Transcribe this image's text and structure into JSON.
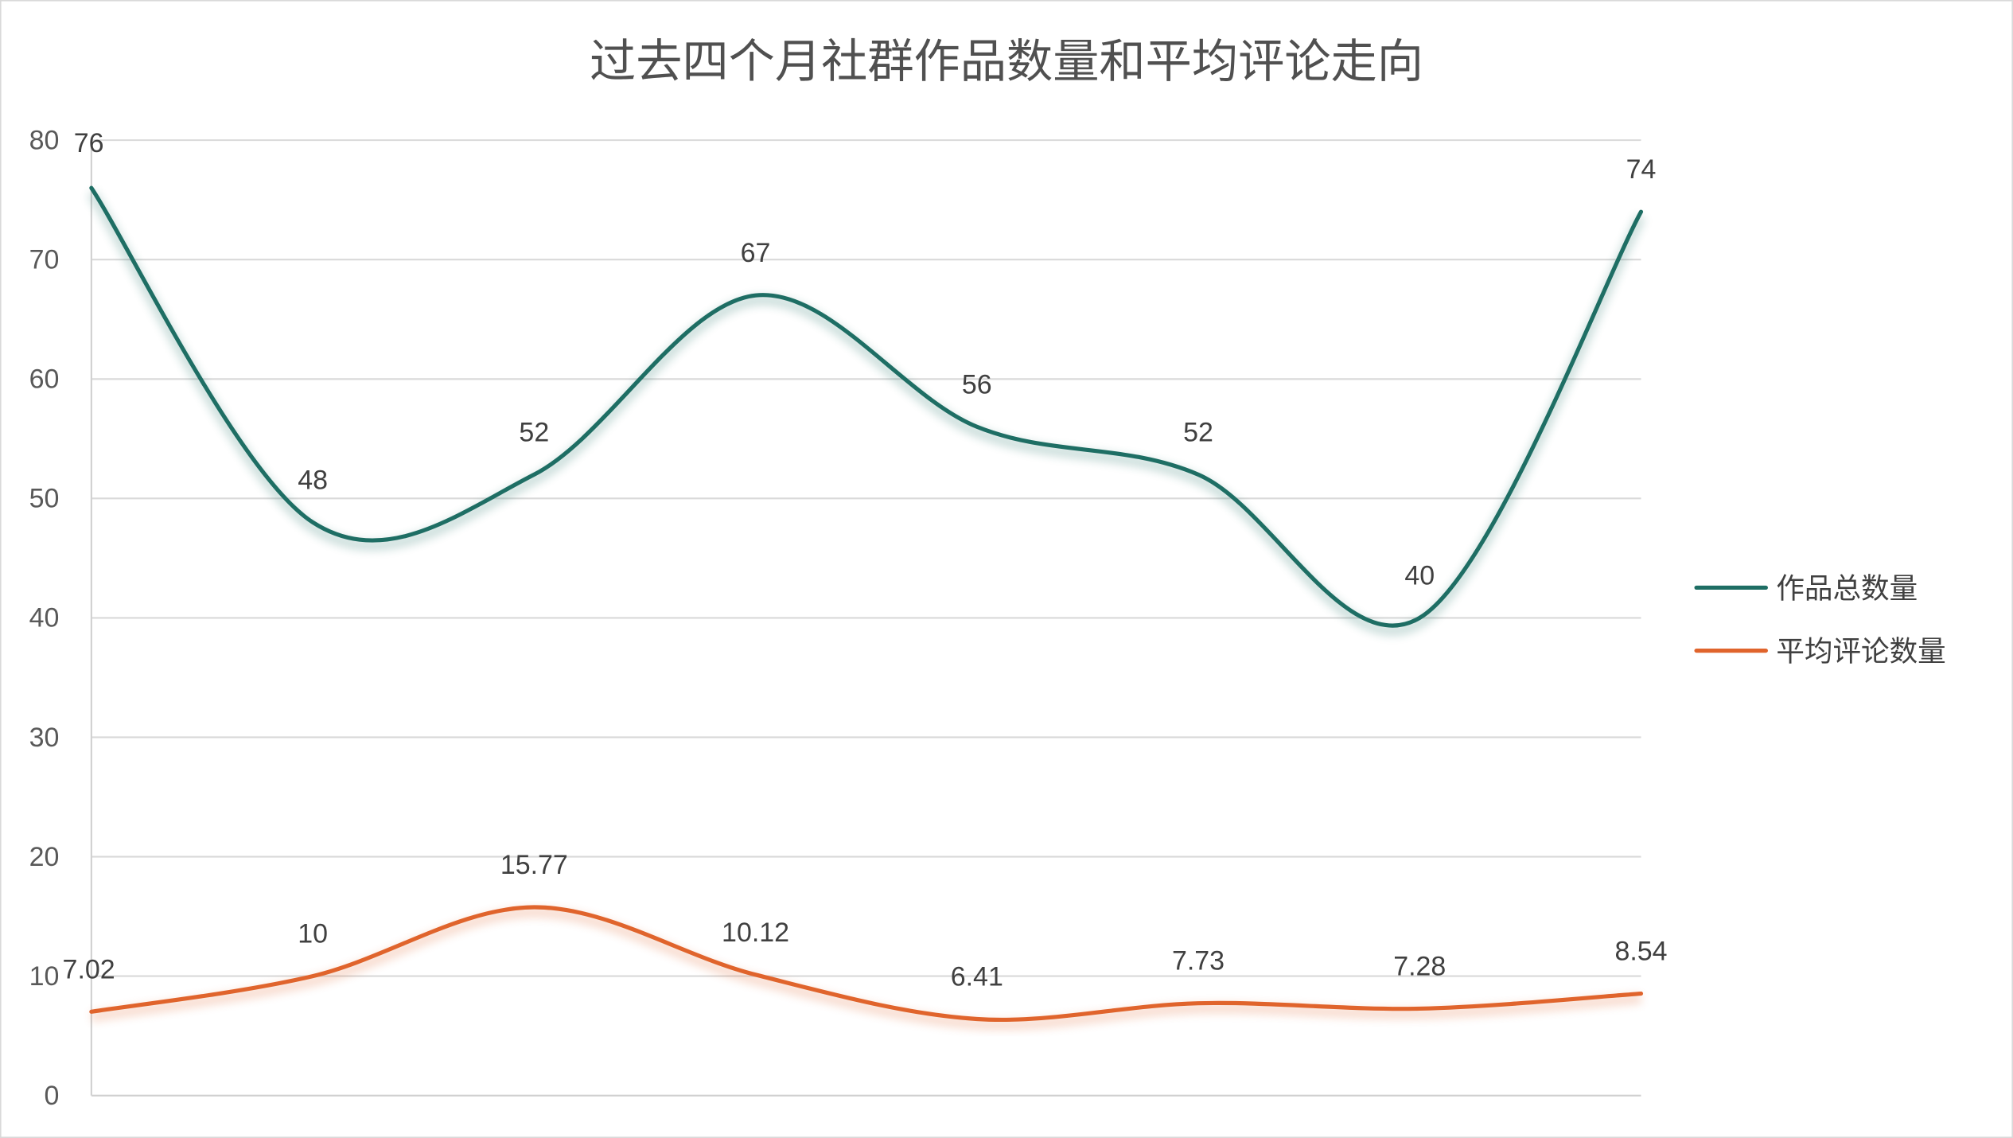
{
  "chart_data": {
    "type": "line",
    "title": "过去四个月社群作品数量和平均评论走向",
    "xlabel": "",
    "ylabel": "",
    "categories": [
      "",
      "",
      "",
      "",
      "",
      "",
      "",
      ""
    ],
    "ylim": [
      0,
      80
    ],
    "yticks": [
      "0",
      "10",
      "20",
      "30",
      "40",
      "50",
      "60",
      "70",
      "80"
    ],
    "grid": true,
    "smooth": true,
    "legend_position": "right",
    "series": [
      {
        "name": "作品总数量",
        "color": "#1e6e64",
        "values": [
          76,
          48,
          52,
          67,
          56,
          52,
          40,
          74
        ],
        "labels": [
          "76",
          "48",
          "52",
          "67",
          "56",
          "52",
          "40",
          "74"
        ]
      },
      {
        "name": "平均评论数量",
        "color": "#e0642c",
        "values": [
          7.02,
          10,
          15.77,
          10.12,
          6.41,
          7.73,
          7.28,
          8.54
        ],
        "labels": [
          "7.02",
          "10",
          "15.77",
          "10.12",
          "6.41",
          "7.73",
          "7.28",
          "8.54"
        ]
      }
    ]
  }
}
